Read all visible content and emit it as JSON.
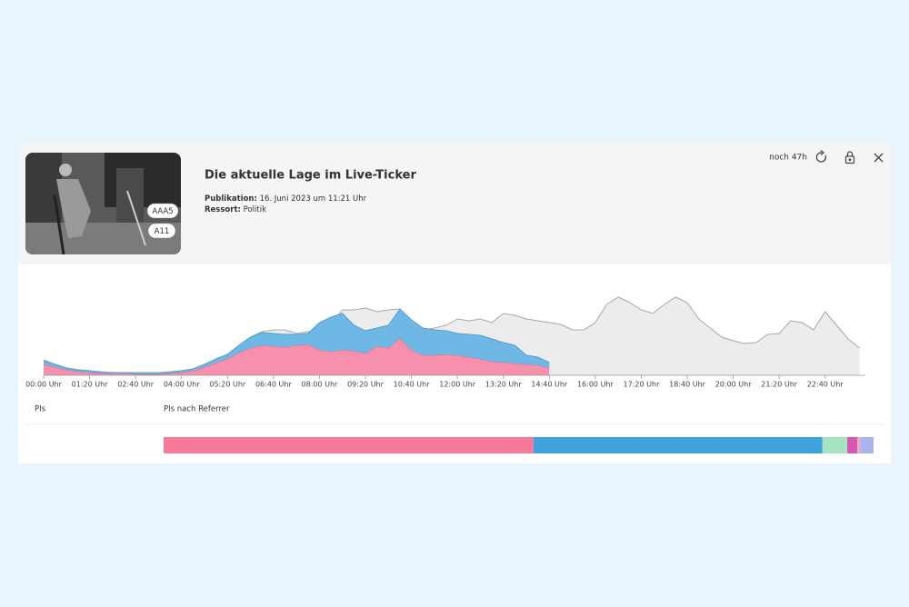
{
  "header": {
    "badges": [
      "AAA5",
      "A11"
    ],
    "title": "Die aktuelle Lage im Live-Ticker",
    "publication_label": "Publikation:",
    "publication_date": "16. Juni 2023 um 11:21 Uhr",
    "section_label": "Ressort:",
    "section": "Politik",
    "remaining": "noch 47h"
  },
  "table": {
    "columns": [
      "PIs",
      "PIs nach Referrer"
    ]
  },
  "chart_data": [
    {
      "type": "area",
      "stacked": true,
      "x": [
        0,
        20,
        40,
        60,
        80,
        100,
        120,
        140,
        160,
        180,
        200,
        220,
        240,
        260,
        280,
        300,
        320,
        340,
        360,
        380,
        400,
        420,
        440,
        460,
        480,
        500,
        520,
        540,
        560,
        580,
        600,
        620,
        640,
        660,
        680,
        700,
        720,
        740,
        760,
        780,
        800,
        820,
        840,
        860,
        880,
        900,
        920,
        940,
        960,
        980,
        1000,
        1020,
        1040,
        1060,
        1080,
        1100,
        1120,
        1140,
        1160,
        1180,
        1200,
        1220,
        1240,
        1260,
        1280,
        1300,
        1320,
        1340,
        1360,
        1380,
        1400,
        1420
      ],
      "xlim": [
        0,
        1430
      ],
      "ylim": [
        0,
        100
      ],
      "xticks": [
        {
          "value": 0,
          "label": "00:00 Uhr"
        },
        {
          "value": 80,
          "label": "01:20 Uhr"
        },
        {
          "value": 160,
          "label": "02:40 Uhr"
        },
        {
          "value": 240,
          "label": "04:00 Uhr"
        },
        {
          "value": 320,
          "label": "05:20 Uhr"
        },
        {
          "value": 400,
          "label": "06:40 Uhr"
        },
        {
          "value": 480,
          "label": "08:00 Uhr"
        },
        {
          "value": 560,
          "label": "09:20 Uhr"
        },
        {
          "value": 640,
          "label": "10:40 Uhr"
        },
        {
          "value": 720,
          "label": "12:00 Uhr"
        },
        {
          "value": 800,
          "label": "13:20 Uhr"
        },
        {
          "value": 880,
          "label": "14:40 Uhr"
        },
        {
          "value": 960,
          "label": "16:00 Uhr"
        },
        {
          "value": 1040,
          "label": "17:20 Uhr"
        },
        {
          "value": 1120,
          "label": "18:40 Uhr"
        },
        {
          "value": 1200,
          "label": "20:00 Uhr"
        },
        {
          "value": 1280,
          "label": "21:20 Uhr"
        },
        {
          "value": 1360,
          "label": "22:40 Uhr"
        }
      ],
      "background_series": {
        "color": "#ececec",
        "line_color": "#a8a8a8",
        "values": [
          17,
          12,
          8,
          6,
          5,
          4,
          3,
          3,
          3,
          3,
          3,
          4,
          5,
          7,
          12,
          18,
          23,
          33,
          42,
          48,
          50,
          50,
          46,
          48,
          50,
          55,
          72,
          72,
          74,
          70,
          72,
          73,
          52,
          50,
          52,
          55,
          62,
          60,
          62,
          58,
          68,
          66,
          62,
          60,
          58,
          56,
          50,
          50,
          58,
          78,
          86,
          80,
          72,
          68,
          78,
          86,
          80,
          62,
          52,
          42,
          38,
          35,
          36,
          45,
          46,
          60,
          58,
          50,
          70,
          55,
          40,
          30
        ]
      },
      "series": [
        {
          "color": "#f790ad",
          "line_color": "#e86d92",
          "values": [
            12,
            9,
            6,
            4,
            3,
            2,
            2,
            2,
            1,
            1,
            1,
            2,
            3,
            5,
            9,
            14,
            18,
            25,
            30,
            33,
            32,
            31,
            33,
            34,
            28,
            26,
            28,
            27,
            24,
            32,
            30,
            41,
            28,
            22,
            22,
            23,
            22,
            20,
            18,
            15,
            14,
            13,
            12,
            11,
            8,
            null,
            null,
            null,
            null,
            null,
            null,
            null,
            null,
            null,
            null,
            null,
            null,
            null,
            null,
            null,
            null,
            null,
            null,
            null,
            null,
            null,
            null,
            null,
            null,
            null,
            null,
            null
          ]
        },
        {
          "color": "#6db8e4",
          "line_color": "#5b9ccc",
          "values": [
            4,
            3,
            2,
            2,
            2,
            1,
            1,
            1,
            1,
            1,
            1,
            1,
            2,
            2,
            3,
            4,
            5,
            8,
            12,
            14,
            14,
            14,
            12,
            12,
            30,
            38,
            40,
            28,
            25,
            20,
            25,
            32,
            33,
            30,
            28,
            26,
            24,
            25,
            26,
            25,
            22,
            20,
            10,
            9,
            6,
            null,
            null,
            null,
            null,
            null,
            null,
            null,
            null,
            null,
            null,
            null,
            null,
            null,
            null,
            null,
            null,
            null,
            null,
            null,
            null,
            null,
            null,
            null,
            null,
            null,
            null,
            null
          ]
        }
      ]
    },
    {
      "type": "bar",
      "orientation": "horizontal",
      "stacked": true,
      "xlim": [
        0,
        100
      ],
      "series": [
        {
          "color": "#f77a9b",
          "values": [
            52.1
          ]
        },
        {
          "color": "#3ea2dc",
          "values": [
            40.7
          ]
        },
        {
          "color": "#a6e3c0",
          "values": [
            3.5
          ]
        },
        {
          "color": "#d957b4",
          "values": [
            1.4
          ]
        },
        {
          "color": "#f7a6bd",
          "values": [
            0.4
          ]
        },
        {
          "color": "#aab4ec",
          "values": [
            1.9
          ]
        }
      ]
    }
  ]
}
